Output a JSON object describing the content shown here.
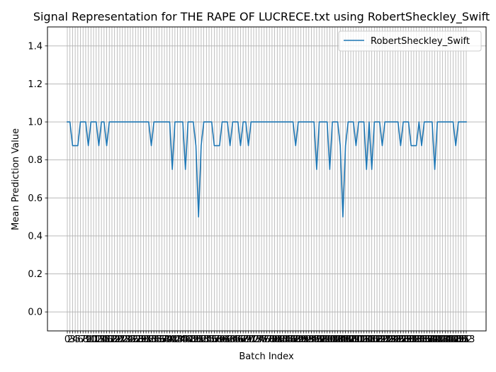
{
  "chart_data": {
    "type": "line",
    "title": "Signal Representation for THE RAPE OF LUCRECE.txt using RobertSheckley_Swift",
    "xlabel": "Batch Index",
    "ylabel": "Mean Prediction Value",
    "ylim": [
      -0.1,
      1.5
    ],
    "y_ticks": [
      0.0,
      0.2,
      0.4,
      0.6,
      0.8,
      1.0,
      1.2,
      1.4
    ],
    "y_tick_labels": [
      "0.0",
      "0.2",
      "0.4",
      "0.6",
      "0.8",
      "1.0",
      "1.2",
      "1.4"
    ],
    "x_tick_labels": [
      "0",
      "2",
      "3",
      "4",
      "5",
      "6",
      "7",
      "8",
      "9",
      "10",
      "11",
      "12",
      "13",
      "14",
      "15",
      "16",
      "17",
      "18",
      "19",
      "20",
      "21",
      "22",
      "23",
      "24",
      "25",
      "26",
      "27",
      "28",
      "29",
      "30",
      "31",
      "32",
      "33",
      "34",
      "35",
      "36",
      "37",
      "38",
      "39",
      "40",
      "41",
      "42",
      "43",
      "44",
      "45",
      "46",
      "47",
      "48",
      "49",
      "50",
      "51",
      "52",
      "53",
      "54",
      "55",
      "56",
      "57",
      "58",
      "59",
      "60",
      "61",
      "62",
      "63",
      "64",
      "65",
      "66",
      "67",
      "68",
      "69",
      "70",
      "71",
      "72",
      "73",
      "74",
      "75",
      "76",
      "77",
      "78",
      "79",
      "80",
      "81",
      "82",
      "83",
      "84",
      "85",
      "86",
      "87",
      "88",
      "89",
      "90",
      "91",
      "92",
      "93",
      "94",
      "95",
      "96",
      "97",
      "98",
      "99",
      "100",
      "101",
      "102",
      "103",
      "104",
      "105",
      "106",
      "107",
      "108",
      "109",
      "110",
      "111",
      "112",
      "113",
      "114",
      "115",
      "116",
      "117",
      "118",
      "119",
      "120",
      "121",
      "122",
      "123",
      "124",
      "125",
      "126",
      "127",
      "128",
      "129",
      "130",
      "131",
      "132",
      "133",
      "134",
      "135",
      "136",
      "137",
      "138",
      "139",
      "140",
      "141",
      "142",
      "143",
      "144",
      "145",
      "146",
      "147",
      "148",
      "149",
      "150",
      "151",
      "152",
      "153"
    ],
    "grid": true,
    "legend_position": "upper right",
    "series": [
      {
        "name": "RobertSheckley_Swift",
        "color": "#1f77b4",
        "x": [
          0,
          2,
          3,
          4,
          5,
          6,
          7,
          8,
          9,
          10,
          11,
          12,
          13,
          14,
          15,
          16,
          17,
          18,
          19,
          20,
          21,
          22,
          23,
          24,
          25,
          26,
          27,
          28,
          29,
          30,
          31,
          32,
          33,
          34,
          35,
          36,
          37,
          38,
          39,
          40,
          41,
          42,
          43,
          44,
          45,
          46,
          47,
          48,
          49,
          50,
          51,
          52,
          53,
          54,
          55,
          56,
          57,
          58,
          59,
          60,
          61,
          62,
          63,
          64,
          65,
          66,
          67,
          68,
          69,
          70,
          71,
          72,
          73,
          74,
          75,
          76,
          77,
          78,
          79,
          80,
          81,
          82,
          83,
          84,
          85,
          86,
          87,
          88,
          89,
          90,
          91,
          92,
          93,
          94,
          95,
          96,
          97,
          98,
          99,
          100,
          101,
          102,
          103,
          104,
          105,
          106,
          107,
          108,
          109,
          110,
          111,
          112,
          113,
          114,
          115,
          116,
          117,
          118,
          119,
          120,
          121,
          122,
          123,
          124,
          125,
          126,
          127,
          128,
          129,
          130,
          131,
          132,
          133,
          134,
          135,
          136,
          137,
          138,
          139,
          140,
          141,
          142,
          143,
          144,
          145,
          146,
          147,
          148,
          149,
          150,
          151,
          152,
          153
        ],
        "values": [
          1.0,
          1.0,
          0.875,
          0.875,
          0.875,
          1.0,
          1.0,
          1.0,
          0.875,
          1.0,
          1.0,
          1.0,
          0.875,
          1.0,
          1.0,
          0.875,
          1.0,
          1.0,
          1.0,
          1.0,
          1.0,
          1.0,
          1.0,
          1.0,
          1.0,
          1.0,
          1.0,
          1.0,
          1.0,
          1.0,
          1.0,
          1.0,
          0.875,
          1.0,
          1.0,
          1.0,
          1.0,
          1.0,
          1.0,
          1.0,
          0.75,
          1.0,
          1.0,
          1.0,
          1.0,
          0.75,
          1.0,
          1.0,
          1.0,
          0.875,
          0.5,
          0.875,
          1.0,
          1.0,
          1.0,
          1.0,
          0.875,
          0.875,
          0.875,
          1.0,
          1.0,
          1.0,
          0.875,
          1.0,
          1.0,
          1.0,
          0.875,
          1.0,
          1.0,
          0.875,
          1.0,
          1.0,
          1.0,
          1.0,
          1.0,
          1.0,
          1.0,
          1.0,
          1.0,
          1.0,
          1.0,
          1.0,
          1.0,
          1.0,
          1.0,
          1.0,
          1.0,
          0.875,
          1.0,
          1.0,
          1.0,
          1.0,
          1.0,
          1.0,
          1.0,
          0.75,
          1.0,
          1.0,
          1.0,
          1.0,
          0.75,
          1.0,
          1.0,
          1.0,
          0.875,
          0.5,
          0.875,
          1.0,
          1.0,
          1.0,
          0.875,
          1.0,
          1.0,
          1.0,
          0.75,
          1.0,
          0.75,
          1.0,
          1.0,
          1.0,
          0.875,
          1.0,
          1.0,
          1.0,
          1.0,
          1.0,
          1.0,
          0.875,
          1.0,
          1.0,
          1.0,
          0.875,
          0.875,
          0.875,
          1.0,
          0.875,
          1.0,
          1.0,
          1.0,
          1.0,
          0.75,
          1.0,
          1.0,
          1.0,
          1.0,
          1.0,
          1.0,
          1.0,
          0.875,
          1.0,
          1.0,
          1.0,
          1.0
        ]
      }
    ]
  }
}
